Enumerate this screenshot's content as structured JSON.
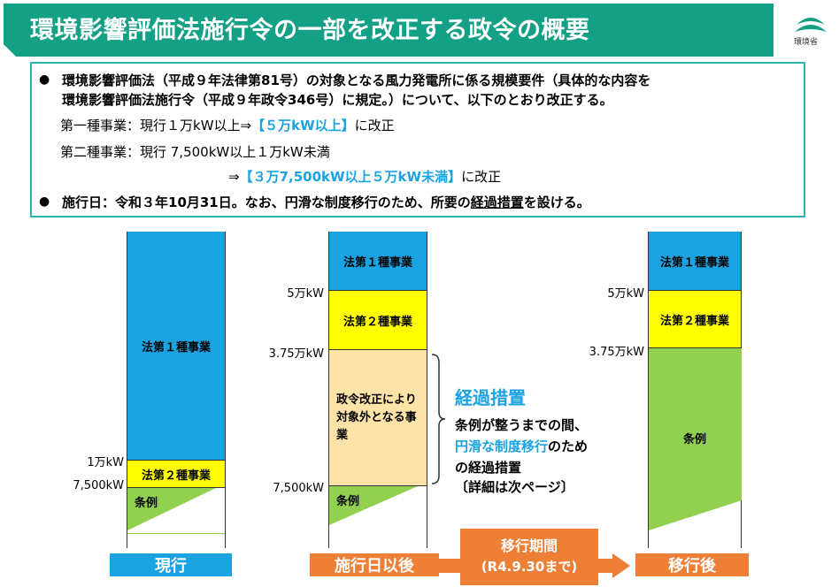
{
  "title": "環境影響評価法施行令の一部を改正する政令の概要",
  "logo_label": "環境省",
  "colors": {
    "title_bg": "#14a085",
    "teal_border": "#2bb5a8",
    "blue": "#1aa3e0",
    "yellow": "#ffff00",
    "peach": "#fde3a7",
    "green": "#92d050",
    "orange": "#ee7f36"
  },
  "summary": {
    "bullet1_line1": "環境影響評価法（平成９年法律第81号）の対象となる風力発電所に係る規模要件（具体的な内容を",
    "bullet1_line2": "環境影響評価法施行令（平成９年政令346号）に規定。）について、以下のとおり改正する。",
    "class1_prefix": "第一種事業：現行１万kW以上⇒",
    "class1_new": "【５万kW以上】",
    "class1_suffix": "に改正",
    "class2_prefix": "第二種事業：現行 7,500kW以上１万kW未満",
    "class2_arrow": "⇒",
    "class2_new": "【３万7,500kW以上５万kW未満】",
    "class2_suffix": "に改正",
    "bullet2_main": "施行日：令和３年10月31日。なお、円滑な制度移行のため、所要の",
    "bullet2_underlined": "経過措置",
    "bullet2_end": "を設ける。"
  },
  "columns": {
    "current": {
      "class1": "法第１種事業",
      "class2": "法第２種事業",
      "jourei": "条例",
      "tick_1man": "1万kW",
      "tick_7500": "7,500kW",
      "bottom": "現行"
    },
    "after": {
      "class1": "法第１種事業",
      "class2": "法第２種事業",
      "excluded": "政令改正により対象外となる事業",
      "jourei": "条例",
      "tick_5man": "5万kW",
      "tick_375": "3.75万kW",
      "tick_7500": "7,500kW",
      "bottom": "施行日以後"
    },
    "final": {
      "class1": "法第１種事業",
      "class2": "法第２種事業",
      "jourei": "条例",
      "tick_5man": "5万kW",
      "tick_375": "3.75万kW",
      "bottom": "移行後"
    }
  },
  "transition": {
    "line1": "移行期間",
    "line2": "(R4.9.30まで)"
  },
  "annotation": {
    "title": "経過措置",
    "line1": "条例が整うまでの間、",
    "line2_highlight": "円滑な制度移行",
    "line2_rest": "のため",
    "line3": "の経過措置",
    "line4": "〔詳細は次ページ〕"
  }
}
